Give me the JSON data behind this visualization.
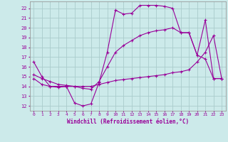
{
  "xlabel": "Windchill (Refroidissement éolien,°C)",
  "bg_color": "#cceaea",
  "grid_color": "#aacccc",
  "line_color": "#990099",
  "xlim": [
    -0.5,
    23.5
  ],
  "ylim": [
    11.5,
    22.7
  ],
  "yticks": [
    12,
    13,
    14,
    15,
    16,
    17,
    18,
    19,
    20,
    21,
    22
  ],
  "xticks": [
    0,
    1,
    2,
    3,
    4,
    5,
    6,
    7,
    8,
    9,
    10,
    11,
    12,
    13,
    14,
    15,
    16,
    17,
    18,
    19,
    20,
    21,
    22,
    23
  ],
  "curve1_x": [
    0,
    1,
    2,
    3,
    4,
    5,
    6,
    7,
    8,
    9,
    10,
    11,
    12,
    13,
    14,
    15,
    16,
    17,
    18,
    19,
    20,
    21,
    22,
    23
  ],
  "curve1_y": [
    16.5,
    15.0,
    14.0,
    13.9,
    14.0,
    12.3,
    12.0,
    12.2,
    14.4,
    17.5,
    21.8,
    21.4,
    21.5,
    22.3,
    22.3,
    22.3,
    22.2,
    22.0,
    19.5,
    19.5,
    17.2,
    20.8,
    14.8,
    14.8
  ],
  "curve2_x": [
    0,
    1,
    2,
    3,
    4,
    5,
    6,
    7,
    8,
    9,
    10,
    11,
    12,
    13,
    14,
    15,
    16,
    17,
    18,
    19,
    20,
    21,
    22,
    23
  ],
  "curve2_y": [
    14.8,
    14.2,
    14.0,
    14.0,
    14.0,
    14.0,
    14.0,
    14.0,
    14.2,
    14.4,
    14.6,
    14.7,
    14.8,
    14.9,
    15.0,
    15.1,
    15.2,
    15.4,
    15.5,
    15.7,
    16.5,
    17.5,
    19.2,
    14.8
  ],
  "curve3_x": [
    0,
    1,
    2,
    3,
    4,
    5,
    6,
    7,
    8,
    9,
    10,
    11,
    12,
    13,
    14,
    15,
    16,
    17,
    18,
    19,
    20,
    21,
    22,
    23
  ],
  "curve3_y": [
    15.2,
    14.8,
    14.5,
    14.2,
    14.1,
    14.0,
    13.8,
    13.7,
    14.5,
    16.0,
    17.5,
    18.2,
    18.7,
    19.2,
    19.5,
    19.7,
    19.8,
    20.0,
    19.5,
    19.5,
    17.2,
    16.8,
    14.8,
    14.8
  ]
}
